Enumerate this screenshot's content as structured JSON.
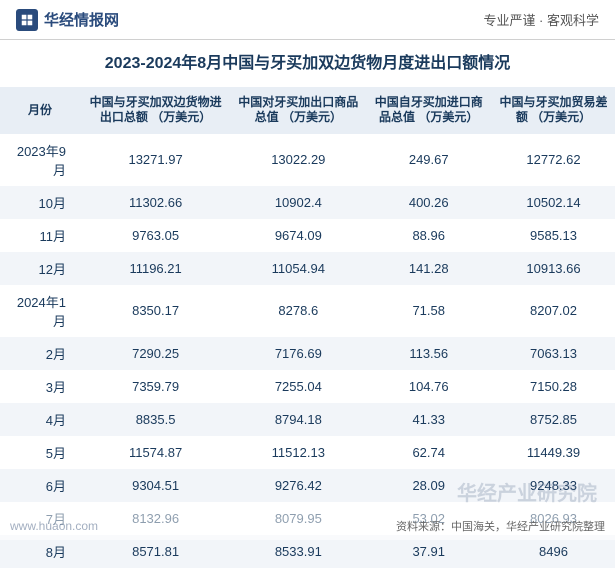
{
  "header": {
    "site_name": "华经情报网",
    "tagline": "专业严谨 · 客观科学",
    "logo_bg": "#2a4b7c"
  },
  "title": "2023-2024年8月中国与牙买加双边货物月度进出口额情况",
  "table": {
    "type": "table",
    "header_bg": "#e8eef5",
    "row_alt_bg": "#f2f5f9",
    "text_color": "#1a3a5c",
    "columns": [
      "月份",
      "中国与牙买加双边货物进出口总额\n（万美元）",
      "中国对牙买加出口商品总值\n（万美元）",
      "中国自牙买加进口商品总值\n（万美元）",
      "中国与牙买加贸易差额\n（万美元）"
    ],
    "rows": [
      [
        "2023年9月",
        "13271.97",
        "13022.29",
        "249.67",
        "12772.62"
      ],
      [
        "10月",
        "11302.66",
        "10902.4",
        "400.26",
        "10502.14"
      ],
      [
        "11月",
        "9763.05",
        "9674.09",
        "88.96",
        "9585.13"
      ],
      [
        "12月",
        "11196.21",
        "11054.94",
        "141.28",
        "10913.66"
      ],
      [
        "2024年1月",
        "8350.17",
        "8278.6",
        "71.58",
        "8207.02"
      ],
      [
        "2月",
        "7290.25",
        "7176.69",
        "113.56",
        "7063.13"
      ],
      [
        "3月",
        "7359.79",
        "7255.04",
        "104.76",
        "7150.28"
      ],
      [
        "4月",
        "8835.5",
        "8794.18",
        "41.33",
        "8752.85"
      ],
      [
        "5月",
        "11574.87",
        "11512.13",
        "62.74",
        "11449.39"
      ],
      [
        "6月",
        "9304.51",
        "9276.42",
        "28.09",
        "9248.33"
      ],
      [
        "7月",
        "8132.96",
        "8079.95",
        "53.02",
        "8026.93"
      ],
      [
        "8月",
        "8571.81",
        "8533.91",
        "37.91",
        "8496"
      ]
    ]
  },
  "watermark": "华经产业研究院",
  "footer": {
    "url": "www.huaon.com",
    "source": "资料来源：中国海关，华经产业研究院整理"
  }
}
